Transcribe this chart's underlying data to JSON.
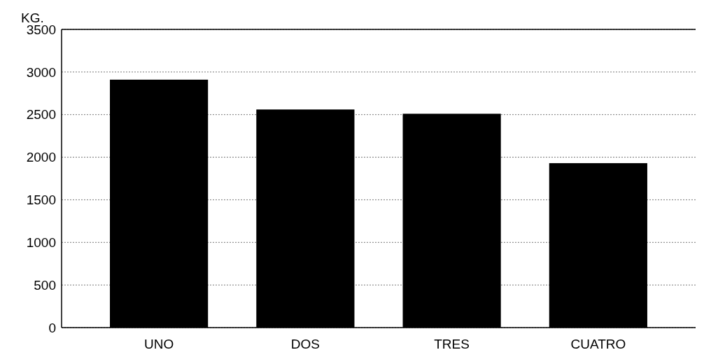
{
  "chart_data": {
    "type": "bar",
    "ylabel": "KG.",
    "categories": [
      "UNO",
      "DOS",
      "TRES",
      "CUATRO"
    ],
    "values": [
      2910,
      2560,
      2510,
      1930
    ],
    "color": "#000000",
    "ylim": [
      0,
      3500
    ],
    "yticks": [
      0,
      500,
      1000,
      1500,
      2000,
      2500,
      3000,
      3500
    ],
    "grid": "y"
  }
}
